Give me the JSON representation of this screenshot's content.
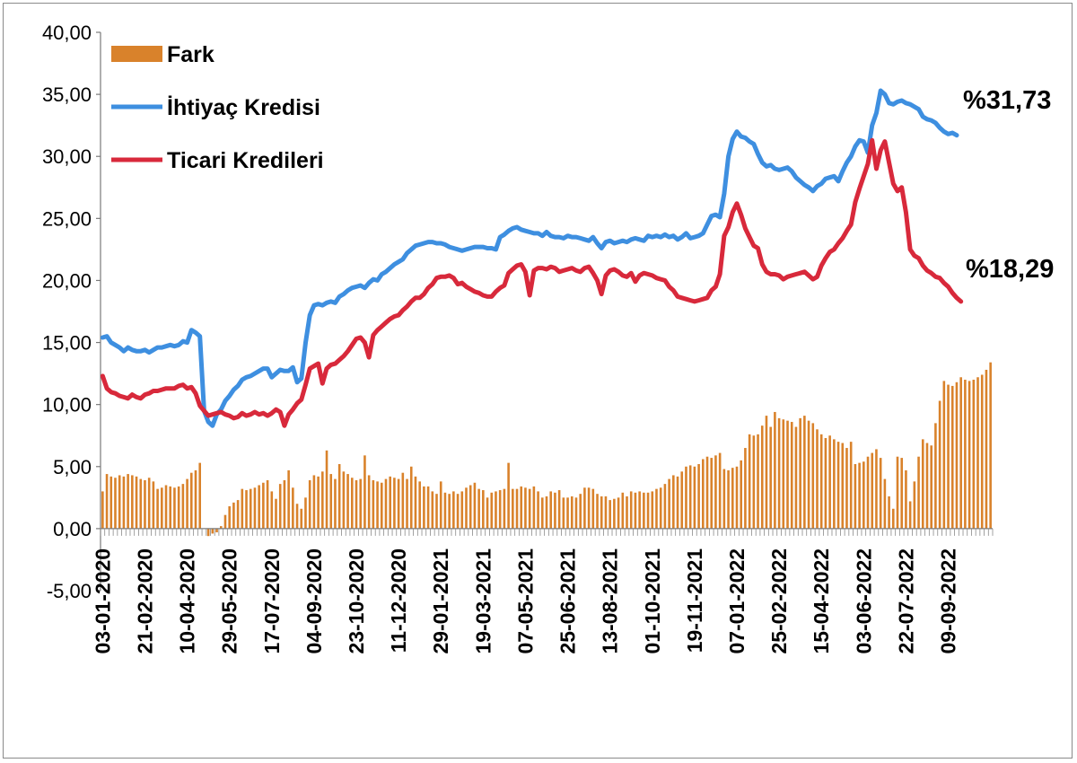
{
  "chart_data": {
    "type": "line",
    "ylim": [
      -5,
      40
    ],
    "y_ticks": [
      "40,00",
      "35,00",
      "30,00",
      "25,00",
      "20,00",
      "15,00",
      "10,00",
      "5,00",
      "0,00",
      "-5,00"
    ],
    "x_tick_labels": [
      "03-01-2020",
      "21-02-2020",
      "10-04-2020",
      "29-05-2020",
      "17-07-2020",
      "04-09-2020",
      "23-10-2020",
      "11-12-2020",
      "29-01-2021",
      "19-03-2021",
      "07-05-2021",
      "25-06-2021",
      "13-08-2021",
      "01-10-2021",
      "19-11-2021",
      "07-01-2022",
      "25-02-2022",
      "15-04-2022",
      "03-06-2022",
      "22-07-2022",
      "09-09-2022"
    ],
    "legend_position": "top-left",
    "grid": false,
    "series": [
      {
        "name": "Fark",
        "kind": "bar",
        "color": "#d9822b",
        "accent_color": "#e8391f",
        "values": [
          3.0,
          4.4,
          4.2,
          4.1,
          4.3,
          4.2,
          4.4,
          4.3,
          4.2,
          4.0,
          3.9,
          4.1,
          3.8,
          3.2,
          3.3,
          3.5,
          3.4,
          3.3,
          3.4,
          3.6,
          4.0,
          4.5,
          4.7,
          5.3,
          0.0,
          -0.6,
          -0.4,
          -0.3,
          0.2,
          1.1,
          1.8,
          2.1,
          2.3,
          3.2,
          3.1,
          3.2,
          3.3,
          3.5,
          3.7,
          3.9,
          3.0,
          2.4,
          3.6,
          3.9,
          4.7,
          3.3,
          2.0,
          1.6,
          2.5,
          3.9,
          4.3,
          4.2,
          4.6,
          6.3,
          4.4,
          4.0,
          5.2,
          4.6,
          4.4,
          4.1,
          3.9,
          4.0,
          5.9,
          4.3,
          3.9,
          3.8,
          3.7,
          4.0,
          4.2,
          4.1,
          4.0,
          4.5,
          4.0,
          5.0,
          4.2,
          3.8,
          3.4,
          3.4,
          3.0,
          2.8,
          3.8,
          2.9,
          2.8,
          3.0,
          2.8,
          3.0,
          3.3,
          3.5,
          3.7,
          3.2,
          3.1,
          2.5,
          2.9,
          3.0,
          3.1,
          3.2,
          5.3,
          3.2,
          3.2,
          3.4,
          3.3,
          3.2,
          3.4,
          3.0,
          2.5,
          2.6,
          3.0,
          2.9,
          3.1,
          2.5,
          2.5,
          2.6,
          2.5,
          2.8,
          3.3,
          3.3,
          3.2,
          2.8,
          2.6,
          2.6,
          2.3,
          2.4,
          2.5,
          2.9,
          2.6,
          3.0,
          2.9,
          3.0,
          2.9,
          2.9,
          3.0,
          3.2,
          3.3,
          3.6,
          4.0,
          4.3,
          4.2,
          4.6,
          5.0,
          5.1,
          5.0,
          5.2,
          5.6,
          5.8,
          5.7,
          5.9,
          6.1,
          4.8,
          4.7,
          4.9,
          5.0,
          5.5,
          6.5,
          7.6,
          7.5,
          7.6,
          8.3,
          9.1,
          8.2,
          9.4,
          8.9,
          8.8,
          8.7,
          8.6,
          8.2,
          8.9,
          9.1,
          8.7,
          8.5,
          8.0,
          7.6,
          7.3,
          7.5,
          7.2,
          7.0,
          6.9,
          6.5,
          7.0,
          5.2,
          5.3,
          5.4,
          5.8,
          6.1,
          6.4,
          5.7,
          4.0,
          2.6,
          1.6,
          5.8,
          5.7,
          4.7,
          2.2,
          3.8,
          5.8,
          7.2,
          6.9,
          6.7,
          8.5,
          10.3,
          11.9,
          11.6,
          11.5,
          11.8,
          12.2,
          12.0,
          11.9,
          12.0,
          12.2,
          12.4,
          12.8,
          13.4
        ],
        "accent_indices": [
          24,
          34,
          52,
          58,
          67,
          70,
          78,
          86,
          90,
          99,
          107,
          113,
          123,
          126,
          133,
          153,
          163,
          170,
          179,
          185,
          188,
          193,
          202,
          207,
          208
        ],
        "marker": "square"
      },
      {
        "name": "İhtiyaç Kredisi",
        "kind": "line",
        "color": "#3e8fe0",
        "values": [
          15.4,
          15.5,
          15.0,
          14.8,
          14.6,
          14.3,
          14.6,
          14.4,
          14.3,
          14.3,
          14.4,
          14.2,
          14.4,
          14.6,
          14.6,
          14.7,
          14.8,
          14.7,
          14.8,
          15.1,
          15.0,
          16.0,
          15.8,
          15.5,
          9.5,
          8.6,
          8.3,
          9.2,
          9.6,
          10.3,
          10.7,
          11.2,
          11.5,
          12.0,
          12.2,
          12.3,
          12.5,
          12.7,
          12.9,
          12.9,
          12.2,
          12.5,
          12.8,
          12.7,
          12.7,
          13.0,
          11.8,
          12.1,
          15.0,
          17.2,
          18.0,
          18.1,
          18.0,
          18.2,
          18.3,
          18.2,
          18.7,
          18.9,
          19.2,
          19.4,
          19.5,
          19.6,
          19.4,
          19.8,
          20.1,
          20.0,
          20.5,
          20.7,
          21.0,
          21.3,
          21.5,
          21.7,
          22.2,
          22.5,
          22.8,
          22.9,
          23.0,
          23.1,
          23.1,
          23.0,
          23.0,
          22.9,
          22.7,
          22.6,
          22.5,
          22.4,
          22.5,
          22.6,
          22.7,
          22.7,
          22.7,
          22.6,
          22.6,
          22.5,
          23.5,
          23.7,
          24.0,
          24.2,
          24.3,
          24.1,
          24.0,
          23.9,
          23.8,
          23.8,
          23.6,
          23.9,
          23.6,
          23.5,
          23.5,
          23.4,
          23.6,
          23.5,
          23.5,
          23.4,
          23.3,
          23.2,
          23.5,
          23.0,
          22.6,
          23.1,
          23.2,
          23.0,
          23.1,
          23.2,
          23.1,
          23.3,
          23.4,
          23.3,
          23.2,
          23.6,
          23.5,
          23.6,
          23.5,
          23.7,
          23.5,
          23.6,
          23.3,
          23.5,
          23.8,
          23.4,
          23.5,
          23.6,
          23.8,
          24.5,
          25.2,
          25.3,
          25.1,
          27.0,
          30.0,
          31.4,
          32.0,
          31.6,
          31.5,
          31.2,
          31.0,
          30.2,
          29.5,
          29.2,
          29.3,
          29.0,
          28.9,
          29.0,
          29.1,
          28.8,
          28.3,
          28.0,
          27.7,
          27.5,
          27.2,
          27.6,
          27.8,
          28.2,
          28.3,
          28.4,
          28.0,
          28.8,
          29.5,
          30.0,
          30.8,
          31.3,
          31.2,
          30.3,
          32.5,
          33.5,
          35.3,
          35.0,
          34.3,
          34.2,
          34.4,
          34.5,
          34.3,
          34.2,
          34.0,
          33.8,
          33.2,
          33.0,
          32.9,
          32.7,
          32.3,
          32.0,
          31.8,
          31.9,
          31.7
        ]
      },
      {
        "name": "Ticari Kredileri",
        "kind": "line",
        "color": "#d8293b",
        "values": [
          12.3,
          11.3,
          11.0,
          10.9,
          10.7,
          10.6,
          10.5,
          10.8,
          10.6,
          10.5,
          10.8,
          10.9,
          11.1,
          11.1,
          11.2,
          11.3,
          11.3,
          11.3,
          11.5,
          11.6,
          11.3,
          11.4,
          10.9,
          9.9,
          9.5,
          9.1,
          9.2,
          9.3,
          9.4,
          9.2,
          9.1,
          8.9,
          9.0,
          9.3,
          9.1,
          9.2,
          9.4,
          9.2,
          9.3,
          9.1,
          9.3,
          9.6,
          9.4,
          8.3,
          9.2,
          9.6,
          10.1,
          10.4,
          11.6,
          12.9,
          13.1,
          13.3,
          11.7,
          12.9,
          13.2,
          13.3,
          13.6,
          13.9,
          14.3,
          14.8,
          15.3,
          15.4,
          15.0,
          13.8,
          15.6,
          16.0,
          16.3,
          16.6,
          16.9,
          17.1,
          17.2,
          17.6,
          17.9,
          18.3,
          18.6,
          18.6,
          18.9,
          19.4,
          19.7,
          20.2,
          20.3,
          20.3,
          20.4,
          20.2,
          19.7,
          19.8,
          19.5,
          19.3,
          19.1,
          19.0,
          18.8,
          18.7,
          18.7,
          19.1,
          19.4,
          19.6,
          20.6,
          20.9,
          21.2,
          21.3,
          20.7,
          18.8,
          20.8,
          21.0,
          21.0,
          20.9,
          21.1,
          21.0,
          20.7,
          20.8,
          20.9,
          21.0,
          20.8,
          20.7,
          21.0,
          21.1,
          20.6,
          20.0,
          18.9,
          20.4,
          20.8,
          20.9,
          20.7,
          20.4,
          20.3,
          20.6,
          19.9,
          20.4,
          20.6,
          20.5,
          20.4,
          20.2,
          20.1,
          20.0,
          19.5,
          19.2,
          18.7,
          18.6,
          18.5,
          18.4,
          18.3,
          18.4,
          18.5,
          18.6,
          19.2,
          19.5,
          20.5,
          23.6,
          24.3,
          25.5,
          26.2,
          25.3,
          24.2,
          23.5,
          22.8,
          22.6,
          21.3,
          20.7,
          20.5,
          20.5,
          20.4,
          20.1,
          20.3,
          20.4,
          20.5,
          20.6,
          20.7,
          20.4,
          20.1,
          20.3,
          21.2,
          21.8,
          22.3,
          22.5,
          23.0,
          23.4,
          24.0,
          24.5,
          26.3,
          27.4,
          28.4,
          29.4,
          31.3,
          29.0,
          30.5,
          31.2,
          29.5,
          27.8,
          27.2,
          27.5,
          25.5,
          22.5,
          22.0,
          21.8,
          21.2,
          20.8,
          20.6,
          20.3,
          20.2,
          19.8,
          19.5,
          19.0,
          18.6,
          18.3
        ]
      }
    ],
    "annotations": [
      {
        "text": "%31,73",
        "series": "İhtiyaç Kredisi"
      },
      {
        "text": "%18,29",
        "series": "Ticari Kredileri"
      }
    ]
  }
}
